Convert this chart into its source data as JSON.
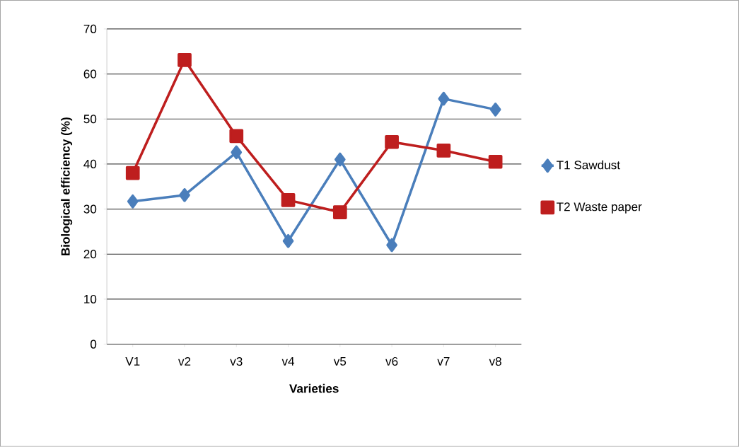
{
  "chart_data": {
    "type": "line",
    "xlabel": "Varieties",
    "ylabel": "Biological efficiency (%)",
    "categories": [
      "V1",
      "v2",
      "v3",
      "v4",
      "v5",
      "v6",
      "v7",
      "v8"
    ],
    "series": [
      {
        "name": "T1 Sawdust",
        "color": "#4a7ebb",
        "marker": "diamond",
        "values": [
          31.7,
          33.1,
          42.6,
          22.9,
          41.0,
          22.0,
          54.5,
          52.1
        ]
      },
      {
        "name": "T2 Waste paper",
        "color": "#be1e1e",
        "marker": "square",
        "values": [
          38.0,
          63.1,
          46.2,
          32.0,
          29.3,
          44.9,
          43.0,
          40.5
        ]
      }
    ],
    "ylim": [
      0,
      70
    ],
    "yticks": [
      0,
      10,
      20,
      30,
      40,
      50,
      60,
      70
    ],
    "grid": "y",
    "legend": "right",
    "line_style": "solid"
  }
}
